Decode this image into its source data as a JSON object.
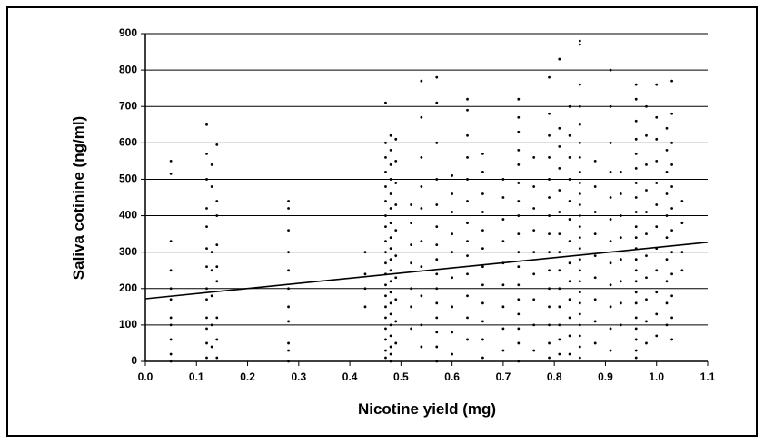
{
  "chart_data": {
    "type": "scatter",
    "x_label": "Nicotine yield (mg)",
    "y_label": "Saliva cotinine (ng/ml)",
    "xlim": [
      0,
      1.1
    ],
    "ylim": [
      0,
      900
    ],
    "xticks": [
      {
        "value": 0,
        "label": "0.0"
      },
      0.1,
      0.2,
      0.3,
      0.4,
      0.5,
      0.6,
      0.7,
      0.8,
      0.9,
      {
        "value": 1,
        "label": "1.0"
      },
      1.1
    ],
    "yticks": [
      0,
      100,
      200,
      300,
      400,
      500,
      600,
      700,
      800,
      900
    ],
    "grid": true,
    "color": "#000000",
    "points": [
      [
        0.05,
        550
      ],
      [
        0.05,
        515
      ],
      [
        0.05,
        330
      ],
      [
        0.05,
        250
      ],
      [
        0.05,
        200
      ],
      [
        0.05,
        170
      ],
      [
        0.05,
        120
      ],
      [
        0.05,
        100
      ],
      [
        0.05,
        60
      ],
      [
        0.05,
        20
      ],
      [
        0.05,
        0
      ],
      [
        0.12,
        650
      ],
      [
        0.12,
        570
      ],
      [
        0.12,
        500
      ],
      [
        0.12,
        420
      ],
      [
        0.12,
        370
      ],
      [
        0.12,
        310
      ],
      [
        0.12,
        260
      ],
      [
        0.12,
        200
      ],
      [
        0.12,
        170
      ],
      [
        0.12,
        120
      ],
      [
        0.12,
        90
      ],
      [
        0.12,
        50
      ],
      [
        0.12,
        10
      ],
      [
        0.13,
        540
      ],
      [
        0.13,
        480
      ],
      [
        0.13,
        300
      ],
      [
        0.13,
        250
      ],
      [
        0.13,
        180
      ],
      [
        0.13,
        100
      ],
      [
        0.13,
        40
      ],
      [
        0.14,
        595
      ],
      [
        0.14,
        440
      ],
      [
        0.14,
        400
      ],
      [
        0.14,
        320
      ],
      [
        0.14,
        260
      ],
      [
        0.14,
        220
      ],
      [
        0.14,
        120
      ],
      [
        0.14,
        60
      ],
      [
        0.14,
        10
      ],
      [
        0.28,
        440
      ],
      [
        0.28,
        420
      ],
      [
        0.28,
        360
      ],
      [
        0.28,
        300
      ],
      [
        0.28,
        250
      ],
      [
        0.28,
        200
      ],
      [
        0.28,
        150
      ],
      [
        0.28,
        110
      ],
      [
        0.28,
        50
      ],
      [
        0.28,
        30
      ],
      [
        0.28,
        0
      ],
      [
        0.43,
        300
      ],
      [
        0.43,
        240
      ],
      [
        0.43,
        200
      ],
      [
        0.43,
        150
      ],
      [
        0.47,
        710
      ],
      [
        0.47,
        600
      ],
      [
        0.47,
        560
      ],
      [
        0.47,
        520
      ],
      [
        0.47,
        480
      ],
      [
        0.47,
        440
      ],
      [
        0.47,
        400
      ],
      [
        0.47,
        370
      ],
      [
        0.47,
        330
      ],
      [
        0.47,
        300
      ],
      [
        0.47,
        270
      ],
      [
        0.47,
        240
      ],
      [
        0.47,
        210
      ],
      [
        0.47,
        180
      ],
      [
        0.47,
        150
      ],
      [
        0.47,
        120
      ],
      [
        0.47,
        90
      ],
      [
        0.47,
        60
      ],
      [
        0.47,
        30
      ],
      [
        0.47,
        10
      ],
      [
        0.48,
        620
      ],
      [
        0.48,
        580
      ],
      [
        0.48,
        540
      ],
      [
        0.48,
        500
      ],
      [
        0.48,
        460
      ],
      [
        0.48,
        420
      ],
      [
        0.48,
        380
      ],
      [
        0.48,
        340
      ],
      [
        0.48,
        310
      ],
      [
        0.48,
        280
      ],
      [
        0.48,
        250
      ],
      [
        0.48,
        220
      ],
      [
        0.48,
        190
      ],
      [
        0.48,
        160
      ],
      [
        0.48,
        130
      ],
      [
        0.48,
        100
      ],
      [
        0.48,
        70
      ],
      [
        0.48,
        40
      ],
      [
        0.48,
        20
      ],
      [
        0.48,
        0
      ],
      [
        0.49,
        610
      ],
      [
        0.49,
        550
      ],
      [
        0.49,
        490
      ],
      [
        0.49,
        430
      ],
      [
        0.49,
        360
      ],
      [
        0.49,
        290
      ],
      [
        0.49,
        230
      ],
      [
        0.49,
        170
      ],
      [
        0.49,
        110
      ],
      [
        0.49,
        50
      ],
      [
        0.52,
        430
      ],
      [
        0.52,
        380
      ],
      [
        0.52,
        320
      ],
      [
        0.52,
        270
      ],
      [
        0.52,
        200
      ],
      [
        0.52,
        150
      ],
      [
        0.52,
        90
      ],
      [
        0.54,
        770
      ],
      [
        0.54,
        670
      ],
      [
        0.54,
        560
      ],
      [
        0.54,
        480
      ],
      [
        0.54,
        420
      ],
      [
        0.54,
        330
      ],
      [
        0.54,
        260
      ],
      [
        0.54,
        180
      ],
      [
        0.54,
        100
      ],
      [
        0.54,
        40
      ],
      [
        0.57,
        780
      ],
      [
        0.57,
        710
      ],
      [
        0.57,
        600
      ],
      [
        0.57,
        500
      ],
      [
        0.57,
        430
      ],
      [
        0.57,
        370
      ],
      [
        0.57,
        320
      ],
      [
        0.57,
        280
      ],
      [
        0.57,
        240
      ],
      [
        0.57,
        200
      ],
      [
        0.57,
        160
      ],
      [
        0.57,
        120
      ],
      [
        0.57,
        80
      ],
      [
        0.57,
        40
      ],
      [
        0.57,
        0
      ],
      [
        0.6,
        510
      ],
      [
        0.6,
        460
      ],
      [
        0.6,
        410
      ],
      [
        0.6,
        350
      ],
      [
        0.6,
        300
      ],
      [
        0.6,
        230
      ],
      [
        0.6,
        150
      ],
      [
        0.6,
        80
      ],
      [
        0.6,
        20
      ],
      [
        0.63,
        720
      ],
      [
        0.63,
        690
      ],
      [
        0.63,
        620
      ],
      [
        0.63,
        560
      ],
      [
        0.63,
        500
      ],
      [
        0.63,
        440
      ],
      [
        0.63,
        380
      ],
      [
        0.63,
        330
      ],
      [
        0.63,
        290
      ],
      [
        0.63,
        240
      ],
      [
        0.63,
        180
      ],
      [
        0.63,
        120
      ],
      [
        0.63,
        60
      ],
      [
        0.66,
        570
      ],
      [
        0.66,
        520
      ],
      [
        0.66,
        460
      ],
      [
        0.66,
        410
      ],
      [
        0.66,
        360
      ],
      [
        0.66,
        310
      ],
      [
        0.66,
        260
      ],
      [
        0.66,
        210
      ],
      [
        0.66,
        160
      ],
      [
        0.66,
        110
      ],
      [
        0.66,
        60
      ],
      [
        0.66,
        10
      ],
      [
        0.7,
        500
      ],
      [
        0.7,
        450
      ],
      [
        0.7,
        390
      ],
      [
        0.7,
        330
      ],
      [
        0.7,
        270
      ],
      [
        0.7,
        210
      ],
      [
        0.7,
        150
      ],
      [
        0.7,
        90
      ],
      [
        0.7,
        30
      ],
      [
        0.73,
        720
      ],
      [
        0.73,
        670
      ],
      [
        0.73,
        630
      ],
      [
        0.73,
        580
      ],
      [
        0.73,
        540
      ],
      [
        0.73,
        490
      ],
      [
        0.73,
        440
      ],
      [
        0.73,
        400
      ],
      [
        0.73,
        350
      ],
      [
        0.73,
        300
      ],
      [
        0.73,
        260
      ],
      [
        0.73,
        210
      ],
      [
        0.73,
        170
      ],
      [
        0.73,
        130
      ],
      [
        0.73,
        90
      ],
      [
        0.73,
        50
      ],
      [
        0.73,
        0
      ],
      [
        0.76,
        560
      ],
      [
        0.76,
        480
      ],
      [
        0.76,
        420
      ],
      [
        0.76,
        360
      ],
      [
        0.76,
        300
      ],
      [
        0.76,
        240
      ],
      [
        0.76,
        170
      ],
      [
        0.76,
        100
      ],
      [
        0.76,
        30
      ],
      [
        0.79,
        780
      ],
      [
        0.79,
        680
      ],
      [
        0.79,
        620
      ],
      [
        0.79,
        560
      ],
      [
        0.79,
        500
      ],
      [
        0.79,
        450
      ],
      [
        0.79,
        400
      ],
      [
        0.79,
        350
      ],
      [
        0.79,
        300
      ],
      [
        0.79,
        250
      ],
      [
        0.79,
        200
      ],
      [
        0.79,
        150
      ],
      [
        0.79,
        100
      ],
      [
        0.79,
        50
      ],
      [
        0.79,
        10
      ],
      [
        0.81,
        830
      ],
      [
        0.81,
        640
      ],
      [
        0.81,
        590
      ],
      [
        0.81,
        530
      ],
      [
        0.81,
        470
      ],
      [
        0.81,
        410
      ],
      [
        0.81,
        350
      ],
      [
        0.81,
        300
      ],
      [
        0.81,
        250
      ],
      [
        0.81,
        200
      ],
      [
        0.81,
        150
      ],
      [
        0.81,
        100
      ],
      [
        0.81,
        60
      ],
      [
        0.81,
        20
      ],
      [
        0.83,
        700
      ],
      [
        0.83,
        620
      ],
      [
        0.83,
        560
      ],
      [
        0.83,
        500
      ],
      [
        0.83,
        440
      ],
      [
        0.83,
        390
      ],
      [
        0.83,
        330
      ],
      [
        0.83,
        270
      ],
      [
        0.83,
        220
      ],
      [
        0.83,
        170
      ],
      [
        0.83,
        120
      ],
      [
        0.83,
        70
      ],
      [
        0.83,
        20
      ],
      [
        0.85,
        880
      ],
      [
        0.85,
        870
      ],
      [
        0.85,
        760
      ],
      [
        0.85,
        700
      ],
      [
        0.85,
        650
      ],
      [
        0.85,
        600
      ],
      [
        0.85,
        560
      ],
      [
        0.85,
        520
      ],
      [
        0.85,
        490
      ],
      [
        0.85,
        460
      ],
      [
        0.85,
        430
      ],
      [
        0.85,
        400
      ],
      [
        0.85,
        370
      ],
      [
        0.85,
        340
      ],
      [
        0.85,
        310
      ],
      [
        0.85,
        280
      ],
      [
        0.85,
        250
      ],
      [
        0.85,
        220
      ],
      [
        0.85,
        190
      ],
      [
        0.85,
        160
      ],
      [
        0.85,
        130
      ],
      [
        0.85,
        100
      ],
      [
        0.85,
        70
      ],
      [
        0.85,
        40
      ],
      [
        0.85,
        10
      ],
      [
        0.88,
        550
      ],
      [
        0.88,
        480
      ],
      [
        0.88,
        410
      ],
      [
        0.88,
        350
      ],
      [
        0.88,
        290
      ],
      [
        0.88,
        230
      ],
      [
        0.88,
        170
      ],
      [
        0.88,
        110
      ],
      [
        0.88,
        50
      ],
      [
        0.91,
        800
      ],
      [
        0.91,
        700
      ],
      [
        0.91,
        600
      ],
      [
        0.91,
        520
      ],
      [
        0.91,
        450
      ],
      [
        0.91,
        390
      ],
      [
        0.91,
        330
      ],
      [
        0.91,
        270
      ],
      [
        0.91,
        210
      ],
      [
        0.91,
        150
      ],
      [
        0.91,
        90
      ],
      [
        0.91,
        30
      ],
      [
        0.93,
        520
      ],
      [
        0.93,
        460
      ],
      [
        0.93,
        400
      ],
      [
        0.93,
        340
      ],
      [
        0.93,
        280
      ],
      [
        0.93,
        220
      ],
      [
        0.93,
        160
      ],
      [
        0.93,
        100
      ],
      [
        0.96,
        760
      ],
      [
        0.96,
        720
      ],
      [
        0.96,
        660
      ],
      [
        0.96,
        610
      ],
      [
        0.96,
        570
      ],
      [
        0.96,
        530
      ],
      [
        0.96,
        490
      ],
      [
        0.96,
        450
      ],
      [
        0.96,
        410
      ],
      [
        0.96,
        370
      ],
      [
        0.96,
        340
      ],
      [
        0.96,
        310
      ],
      [
        0.96,
        280
      ],
      [
        0.96,
        250
      ],
      [
        0.96,
        220
      ],
      [
        0.96,
        190
      ],
      [
        0.96,
        160
      ],
      [
        0.96,
        120
      ],
      [
        0.96,
        90
      ],
      [
        0.96,
        60
      ],
      [
        0.96,
        30
      ],
      [
        0.96,
        10
      ],
      [
        0.98,
        700
      ],
      [
        0.98,
        620
      ],
      [
        0.98,
        540
      ],
      [
        0.98,
        470
      ],
      [
        0.98,
        410
      ],
      [
        0.98,
        350
      ],
      [
        0.98,
        290
      ],
      [
        0.98,
        230
      ],
      [
        0.98,
        170
      ],
      [
        0.98,
        110
      ],
      [
        0.98,
        50
      ],
      [
        1,
        760
      ],
      [
        1,
        670
      ],
      [
        1,
        610
      ],
      [
        1,
        550
      ],
      [
        1,
        490
      ],
      [
        1,
        430
      ],
      [
        1,
        370
      ],
      [
        1,
        310
      ],
      [
        1,
        250
      ],
      [
        1,
        190
      ],
      [
        1,
        130
      ],
      [
        1,
        70
      ],
      [
        1.02,
        640
      ],
      [
        1.02,
        580
      ],
      [
        1.02,
        520
      ],
      [
        1.02,
        460
      ],
      [
        1.02,
        400
      ],
      [
        1.02,
        340
      ],
      [
        1.02,
        280
      ],
      [
        1.02,
        220
      ],
      [
        1.02,
        160
      ],
      [
        1.02,
        100
      ],
      [
        1.03,
        770
      ],
      [
        1.03,
        680
      ],
      [
        1.03,
        600
      ],
      [
        1.03,
        540
      ],
      [
        1.03,
        480
      ],
      [
        1.03,
        420
      ],
      [
        1.03,
        360
      ],
      [
        1.03,
        300
      ],
      [
        1.03,
        240
      ],
      [
        1.03,
        180
      ],
      [
        1.03,
        120
      ],
      [
        1.03,
        60
      ],
      [
        1.05,
        440
      ],
      [
        1.05,
        380
      ],
      [
        1.05,
        300
      ],
      [
        1.05,
        250
      ]
    ],
    "trend": {
      "x": [
        0,
        1.1
      ],
      "values": [
        172,
        327
      ]
    }
  }
}
